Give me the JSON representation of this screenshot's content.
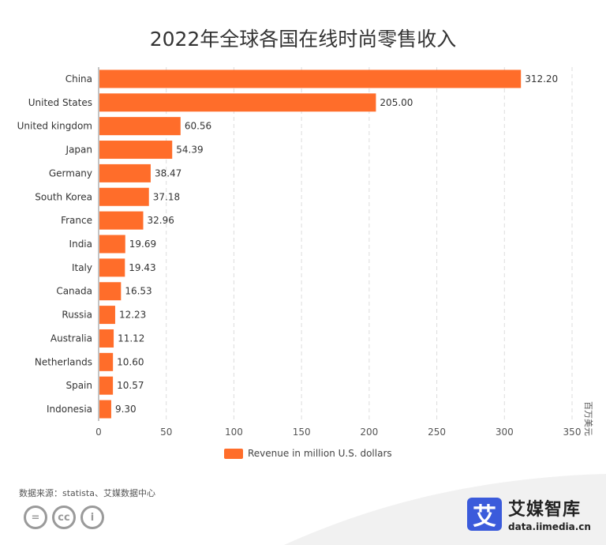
{
  "chart_data": {
    "type": "bar",
    "orientation": "horizontal",
    "title": "2022年全球各国在线时尚零售收入",
    "categories": [
      "China",
      "United States",
      "United kingdom",
      "Japan",
      "Germany",
      "South Korea",
      "France",
      "India",
      "Italy",
      "Canada",
      "Russia",
      "Australia",
      "Netherlands",
      "Spain",
      "Indonesia"
    ],
    "series": [
      {
        "name": "Revenue in million U.S. dollars",
        "values": [
          312.2,
          205.0,
          60.56,
          54.39,
          38.47,
          37.18,
          32.96,
          19.69,
          19.43,
          16.53,
          12.23,
          11.12,
          10.6,
          10.57,
          9.3
        ],
        "labels": [
          "312.20",
          "205.00",
          "60.56",
          "54.39",
          "38.47",
          "37.18",
          "32.96",
          "19.69",
          "19.43",
          "16.53",
          "12.23",
          "11.12",
          "10.60",
          "10.57",
          "9.30"
        ]
      }
    ],
    "xlim": [
      0,
      350
    ],
    "xticks": [
      "0",
      "50",
      "100",
      "150",
      "200",
      "250",
      "300",
      "350"
    ],
    "unit_label": "百万美元",
    "grid": "vertical dashed",
    "legend_position": "bottom",
    "bar_color": "#ff6d2a"
  },
  "footer": {
    "source": "数据来源：statista、艾媒数据中心",
    "license_icons": [
      "=",
      "cc",
      "i"
    ],
    "brand_logo": "艾",
    "brand_name": "艾媒智库",
    "brand_url": "data.iimedia.cn"
  }
}
